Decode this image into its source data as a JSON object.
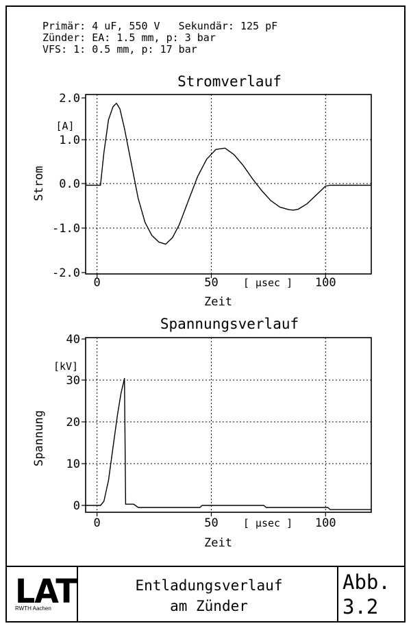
{
  "header": {
    "line1": "Primär: 4 uF, 550 V   Sekundär: 125 pF",
    "line2": "Zünder: EA: 1.5 mm, p: 3 bar",
    "line3": "VFS: 1: 0.5 mm, p: 17 bar"
  },
  "chart_data": [
    {
      "type": "line",
      "title": "Stromverlauf",
      "xlabel": "Zeit",
      "ylabel": "Strom",
      "yunit": "[A]",
      "xunit": "[ µsec ]",
      "xlim": [
        -5,
        120
      ],
      "ylim": [
        -2.0,
        2.0
      ],
      "xticks": [
        "0",
        "50",
        "100"
      ],
      "yticks": [
        "2.0",
        "1.0",
        "0.0",
        "-1.0",
        "-2.0"
      ],
      "grid": true,
      "series": [
        {
          "x": [
            -5,
            1.5,
            3,
            5,
            7,
            8.5,
            10,
            12,
            15,
            18,
            21,
            24,
            27,
            30,
            33,
            36,
            40,
            44,
            48,
            52,
            56,
            60,
            64,
            68,
            72,
            76,
            80,
            84,
            86,
            88,
            92,
            96,
            100,
            102,
            106,
            110,
            120
          ],
          "y": [
            0,
            0,
            0.75,
            1.5,
            1.8,
            1.88,
            1.75,
            1.3,
            0.5,
            -0.3,
            -0.85,
            -1.15,
            -1.3,
            -1.35,
            -1.2,
            -0.9,
            -0.35,
            0.2,
            0.6,
            0.82,
            0.85,
            0.7,
            0.45,
            0.15,
            -0.12,
            -0.35,
            -0.5,
            -0.56,
            -0.57,
            -0.55,
            -0.42,
            -0.22,
            -0.02,
            0,
            0,
            0,
            0
          ]
        }
      ]
    },
    {
      "type": "line",
      "title": "Spannungsverlauf",
      "xlabel": "Zeit",
      "ylabel": "Spannung",
      "yunit": "[kV]",
      "xunit": "[ µsec ]",
      "xlim": [
        -5,
        120
      ],
      "ylim": [
        -1,
        40
      ],
      "xticks": [
        "0",
        "50",
        "100"
      ],
      "yticks": [
        "40",
        "30",
        "20",
        "10",
        "0"
      ],
      "grid": true,
      "series": [
        {
          "x": [
            -5,
            1.5,
            3,
            5,
            7,
            9,
            10.5,
            12,
            12.5,
            16,
            18,
            45,
            46,
            73,
            74,
            101,
            102,
            120
          ],
          "y": [
            0,
            0,
            1,
            6,
            14,
            22,
            27,
            30.5,
            0.3,
            0.3,
            -0.5,
            -0.5,
            0,
            0,
            -0.5,
            -0.5,
            -1,
            -1
          ]
        }
      ]
    }
  ],
  "footer": {
    "logo": "LAT",
    "logo_sub": "RWTH Aachen",
    "caption_line1": "Entladungsverlauf",
    "caption_line2": "am Zünder",
    "abb_line1": "Abb.",
    "abb_line2": "3.2"
  }
}
